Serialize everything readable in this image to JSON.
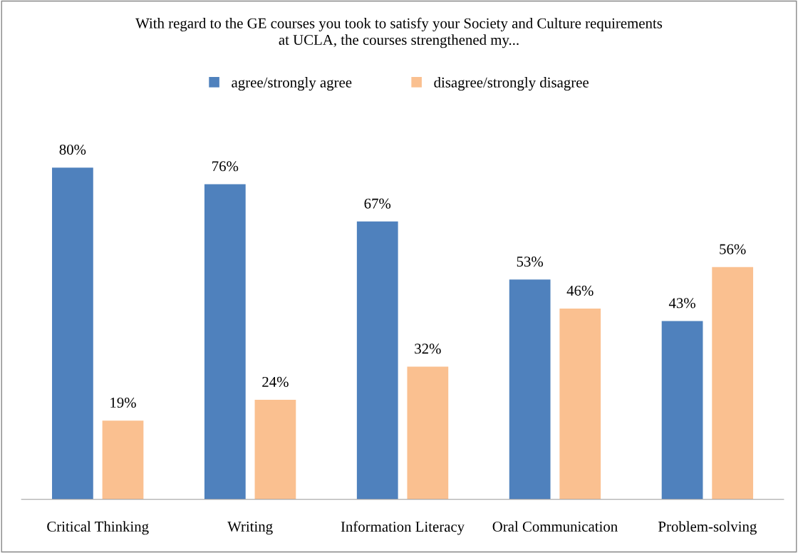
{
  "chart_data": {
    "type": "bar",
    "title": "With regard to the GE courses you took to satisfy your Society and Culture requirements\nat UCLA, the courses strengthened my...",
    "categories": [
      "Critical Thinking",
      "Writing",
      "Information Literacy",
      "Oral Communication",
      "Problem-solving"
    ],
    "series": [
      {
        "name": "agree/strongly agree",
        "color": "#4f81bd",
        "values": [
          80,
          76,
          67,
          53,
          43
        ],
        "value_labels": [
          "80%",
          "76%",
          "67%",
          "53%",
          "43%"
        ]
      },
      {
        "name": "disagree/strongly disagree",
        "color": "#fac090",
        "values": [
          19,
          24,
          32,
          46,
          56
        ],
        "value_labels": [
          "19%",
          "24%",
          "32%",
          "46%",
          "56%"
        ]
      }
    ],
    "legend": "top",
    "grid": false
  }
}
